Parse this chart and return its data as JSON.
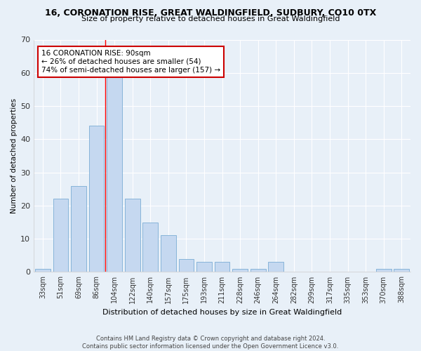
{
  "title": "16, CORONATION RISE, GREAT WALDINGFIELD, SUDBURY, CO10 0TX",
  "subtitle": "Size of property relative to detached houses in Great Waldingfield",
  "xlabel": "Distribution of detached houses by size in Great Waldingfield",
  "ylabel": "Number of detached properties",
  "footer1": "Contains HM Land Registry data © Crown copyright and database right 2024.",
  "footer2": "Contains public sector information licensed under the Open Government Licence v3.0.",
  "categories": [
    "33sqm",
    "51sqm",
    "69sqm",
    "86sqm",
    "104sqm",
    "122sqm",
    "140sqm",
    "157sqm",
    "175sqm",
    "193sqm",
    "211sqm",
    "228sqm",
    "246sqm",
    "264sqm",
    "282sqm",
    "299sqm",
    "317sqm",
    "335sqm",
    "353sqm",
    "370sqm",
    "388sqm"
  ],
  "values": [
    1,
    22,
    26,
    44,
    59,
    22,
    15,
    11,
    4,
    3,
    3,
    1,
    1,
    3,
    0,
    0,
    0,
    0,
    0,
    1,
    1
  ],
  "bar_color": "#c5d8f0",
  "bar_edge_color": "#7aadd4",
  "background_color": "#e8f0f8",
  "grid_color": "#ffffff",
  "red_line_x": 3.5,
  "annotation_text": "16 CORONATION RISE: 90sqm\n← 26% of detached houses are smaller (54)\n74% of semi-detached houses are larger (157) →",
  "annotation_box_color": "#ffffff",
  "annotation_box_edge": "#cc0000",
  "ylim": [
    0,
    70
  ],
  "yticks": [
    0,
    10,
    20,
    30,
    40,
    50,
    60,
    70
  ]
}
